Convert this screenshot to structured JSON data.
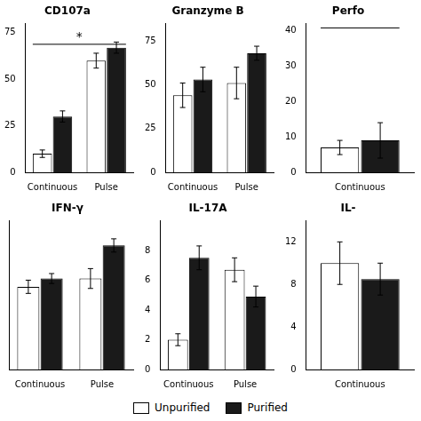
{
  "chart_data": [
    {
      "type": "bar",
      "title": "CD107a",
      "categories": [
        "Continuous",
        "Pulse"
      ],
      "series": [
        {
          "name": "Unpurified",
          "color": "#ffffff",
          "values": [
            10,
            60
          ],
          "errors": [
            2,
            4
          ]
        },
        {
          "name": "Purified",
          "color": "#1a1a1a",
          "values": [
            30,
            67
          ],
          "errors": [
            3,
            3
          ]
        }
      ],
      "ylim": [
        0,
        80
      ],
      "yticks": [
        0,
        25,
        50,
        75
      ],
      "grid": false,
      "legend": "bottom",
      "annotations": [
        {
          "text": "*",
          "y": 68.8,
          "span": [
            "Continuous",
            "Pulse"
          ]
        }
      ]
    },
    {
      "type": "bar",
      "title": "Granzyme B",
      "categories": [
        "Continuous",
        "Pulse"
      ],
      "series": [
        {
          "name": "Unpurified",
          "color": "#ffffff",
          "values": [
            44,
            51
          ],
          "errors": [
            7,
            9
          ]
        },
        {
          "name": "Purified",
          "color": "#1a1a1a",
          "values": [
            53,
            68
          ],
          "errors": [
            7,
            4
          ]
        }
      ],
      "ylim": [
        0,
        85
      ],
      "yticks": [
        0,
        25,
        50,
        75
      ],
      "grid": false
    },
    {
      "type": "bar",
      "title": "Perfo",
      "categories": [
        "Continuous"
      ],
      "series": [
        {
          "name": "Unpurified",
          "color": "#ffffff",
          "values": [
            7
          ],
          "errors": [
            2
          ]
        },
        {
          "name": "Purified",
          "color": "#1a1a1a",
          "values": [
            9
          ],
          "errors": [
            5
          ]
        }
      ],
      "ylim": [
        0,
        42
      ],
      "yticks": [
        0,
        10,
        20,
        30,
        40
      ],
      "grid": false,
      "annotations": [
        {
          "y": 40.74,
          "span": [
            "Continuous"
          ]
        }
      ]
    },
    {
      "type": "bar",
      "title": "IFN-γ",
      "categories": [
        "Continuous",
        "Pulse"
      ],
      "series": [
        {
          "name": "Unpurified",
          "color": "#ffffff",
          "values": [
            5.0,
            5.5
          ],
          "errors": [
            0.4,
            0.6
          ]
        },
        {
          "name": "Purified",
          "color": "#1a1a1a",
          "values": [
            5.5,
            7.5
          ],
          "errors": [
            0.3,
            0.4
          ]
        }
      ],
      "ylim": [
        0,
        9
      ],
      "yticks": [],
      "tick_labels": "x",
      "grid": false
    },
    {
      "type": "bar",
      "title": "IL-17A",
      "categories": [
        "Continuous",
        "Pulse"
      ],
      "series": [
        {
          "name": "Unpurified",
          "color": "#ffffff",
          "values": [
            2.0,
            6.7
          ],
          "errors": [
            0.4,
            0.8
          ]
        },
        {
          "name": "Purified",
          "color": "#1a1a1a",
          "values": [
            7.5,
            4.9
          ],
          "errors": [
            0.8,
            0.7
          ]
        }
      ],
      "ylim": [
        0,
        10
      ],
      "yticks": [
        0,
        2,
        4,
        6,
        8
      ],
      "grid": false
    },
    {
      "type": "bar",
      "title": "IL-",
      "categories": [
        "Continuous"
      ],
      "series": [
        {
          "name": "Unpurified",
          "color": "#ffffff",
          "values": [
            10
          ],
          "errors": [
            2
          ]
        },
        {
          "name": "Purified",
          "color": "#1a1a1a",
          "values": [
            8.5
          ],
          "errors": [
            1.5
          ]
        }
      ],
      "ylim": [
        0,
        14
      ],
      "yticks": [
        0,
        4,
        8,
        12
      ],
      "grid": false
    }
  ]
}
